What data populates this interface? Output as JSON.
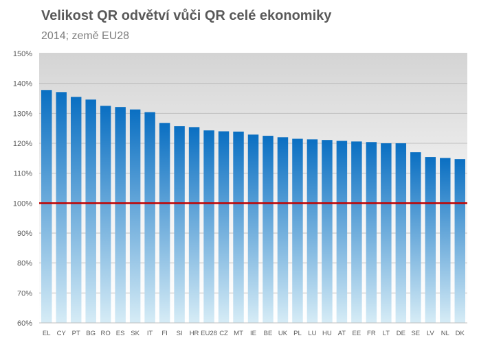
{
  "chart_data": {
    "type": "bar",
    "title": "Velikost QR odvětví vůči QR celé ekonomiky",
    "subtitle": "2014; země EU28",
    "categories": [
      "EL",
      "CY",
      "PT",
      "BG",
      "RO",
      "ES",
      "SK",
      "IT",
      "FI",
      "SI",
      "HR",
      "EU28",
      "CZ",
      "MT",
      "IE",
      "BE",
      "UK",
      "PL",
      "LU",
      "HU",
      "AT",
      "EE",
      "FR",
      "LT",
      "DE",
      "SE",
      "LV",
      "NL",
      "DK"
    ],
    "values": [
      137.8,
      137.1,
      135.5,
      134.6,
      132.5,
      132.1,
      131.3,
      130.4,
      126.8,
      125.7,
      125.4,
      124.3,
      124.0,
      123.9,
      122.9,
      122.5,
      122.0,
      121.5,
      121.3,
      121.1,
      120.8,
      120.6,
      120.4,
      120.0,
      120.0,
      117.0,
      115.4,
      115.1,
      114.7
    ],
    "ylim": [
      60,
      150
    ],
    "yticks": [
      "60%",
      "70%",
      "80%",
      "90%",
      "100%",
      "110%",
      "120%",
      "130%",
      "140%",
      "150%"
    ],
    "reference_line": 100,
    "grid": true,
    "colors": {
      "bar_top": "#0a6fc2",
      "bar_bottom": "#d6ecf6",
      "reference_line": "#c00000",
      "plot_bg_top": "#d9d9d9",
      "plot_bg_bottom": "#ffffff",
      "grid": "#bfbfbf"
    }
  }
}
